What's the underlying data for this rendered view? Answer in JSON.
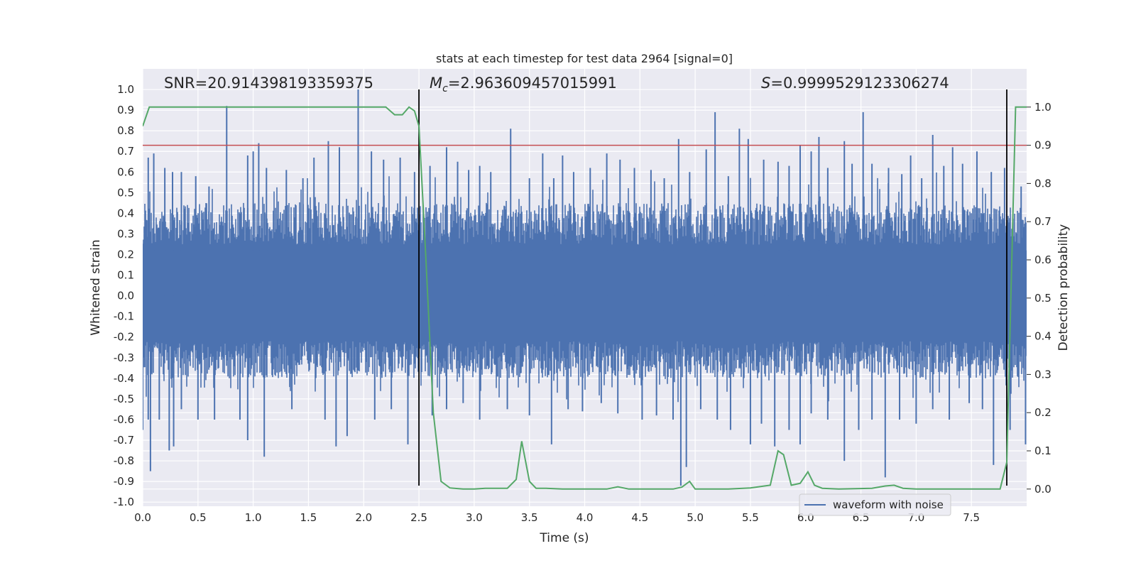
{
  "chart_data": {
    "type": "line",
    "title": "stats at each timestep for test data 2964 [signal=0]",
    "xlabel": "Time (s)",
    "ylabel": "Whitened strain",
    "y2label": "Detection probability",
    "xlim": [
      0.0,
      8.0
    ],
    "ylim": [
      -1.02,
      1.1
    ],
    "y2lim": [
      -0.045,
      1.1
    ],
    "x_ticks": [
      "0.0",
      "0.5",
      "1.0",
      "1.5",
      "2.0",
      "2.5",
      "3.0",
      "3.5",
      "4.0",
      "4.5",
      "5.0",
      "5.5",
      "6.0",
      "6.5",
      "7.0",
      "7.5"
    ],
    "y_ticks": [
      "-1.0",
      "-0.9",
      "-0.8",
      "-0.7",
      "-0.6",
      "-0.5",
      "-0.4",
      "-0.3",
      "-0.2",
      "-0.1",
      "0.0",
      "0.1",
      "0.2",
      "0.3",
      "0.4",
      "0.5",
      "0.6",
      "0.7",
      "0.8",
      "0.9",
      "1.0"
    ],
    "y2_ticks": [
      "0.0",
      "0.1",
      "0.2",
      "0.3",
      "0.4",
      "0.5",
      "0.6",
      "0.7",
      "0.8",
      "0.9",
      "1.0"
    ],
    "grid": true,
    "legend": {
      "position": "bottom-right",
      "entries": [
        "waveform with noise"
      ]
    },
    "annotations": {
      "snr": "SNR=20.914398193359375",
      "mc_symbol": "M",
      "mc_sub": "c",
      "mc_value": "=2.963609457015991",
      "s_symbol": "S",
      "s_value": "=0.9999529123306274"
    },
    "threshold_line": {
      "axis": "right",
      "value": 0.9,
      "color": "#c44e52"
    },
    "vertical_markers": [
      {
        "x": 2.5,
        "y_range": [
          -0.92,
          1.0
        ]
      },
      {
        "x": 7.82,
        "y_range": [
          -0.92,
          1.0
        ]
      }
    ],
    "waveform": {
      "name": "waveform with noise",
      "color": "#4c72b0",
      "envelope_upper": 0.45,
      "envelope_lower": -0.4,
      "peaks": [
        [
          0.05,
          0.67
        ],
        [
          0.1,
          0.69
        ],
        [
          0.2,
          0.62
        ],
        [
          0.27,
          0.6
        ],
        [
          0.35,
          0.6
        ],
        [
          0.48,
          0.58
        ],
        [
          0.6,
          0.53
        ],
        [
          0.76,
          0.92
        ],
        [
          0.95,
          0.68
        ],
        [
          1.0,
          0.7
        ],
        [
          1.05,
          0.74
        ],
        [
          1.12,
          0.62
        ],
        [
          1.3,
          0.61
        ],
        [
          1.45,
          0.57
        ],
        [
          1.55,
          0.67
        ],
        [
          1.68,
          0.75
        ],
        [
          1.78,
          0.72
        ],
        [
          1.95,
          1.0
        ],
        [
          2.07,
          0.7
        ],
        [
          2.18,
          0.66
        ],
        [
          2.33,
          0.67
        ],
        [
          2.46,
          0.6
        ],
        [
          2.6,
          0.63
        ],
        [
          2.75,
          0.72
        ],
        [
          2.85,
          0.65
        ],
        [
          2.95,
          0.61
        ],
        [
          3.05,
          0.63
        ],
        [
          3.15,
          0.6
        ],
        [
          3.33,
          0.81
        ],
        [
          3.5,
          0.57
        ],
        [
          3.62,
          0.69
        ],
        [
          3.72,
          0.57
        ],
        [
          3.8,
          0.68
        ],
        [
          3.9,
          0.6
        ],
        [
          4.05,
          0.62
        ],
        [
          4.2,
          0.69
        ],
        [
          4.32,
          0.66
        ],
        [
          4.45,
          0.62
        ],
        [
          4.6,
          0.61
        ],
        [
          4.72,
          0.57
        ],
        [
          4.85,
          0.76
        ],
        [
          4.95,
          0.6
        ],
        [
          5.1,
          0.71
        ],
        [
          5.18,
          0.89
        ],
        [
          5.3,
          0.58
        ],
        [
          5.4,
          0.81
        ],
        [
          5.48,
          0.76
        ],
        [
          5.62,
          0.66
        ],
        [
          5.75,
          0.65
        ],
        [
          5.85,
          0.63
        ],
        [
          5.95,
          0.73
        ],
        [
          6.05,
          0.7
        ],
        [
          6.12,
          0.77
        ],
        [
          6.2,
          0.62
        ],
        [
          6.35,
          0.75
        ],
        [
          6.42,
          0.64
        ],
        [
          6.52,
          0.89
        ],
        [
          6.6,
          0.64
        ],
        [
          6.75,
          0.62
        ],
        [
          6.87,
          0.59
        ],
        [
          6.95,
          0.68
        ],
        [
          7.05,
          0.57
        ],
        [
          7.15,
          0.78
        ],
        [
          7.25,
          0.63
        ],
        [
          7.33,
          0.72
        ],
        [
          7.42,
          0.64
        ],
        [
          7.55,
          0.7
        ],
        [
          7.68,
          0.6
        ],
        [
          7.8,
          0.62
        ],
        [
          7.95,
          0.53
        ]
      ],
      "troughs": [
        [
          0.0,
          -0.65
        ],
        [
          0.05,
          -0.6
        ],
        [
          0.07,
          -0.85
        ],
        [
          0.15,
          -0.6
        ],
        [
          0.24,
          -0.75
        ],
        [
          0.28,
          -0.73
        ],
        [
          0.35,
          -0.55
        ],
        [
          0.5,
          -0.6
        ],
        [
          0.65,
          -0.6
        ],
        [
          0.88,
          -0.6
        ],
        [
          0.95,
          -0.7
        ],
        [
          1.1,
          -0.78
        ],
        [
          1.35,
          -0.55
        ],
        [
          1.65,
          -0.6
        ],
        [
          1.75,
          -0.73
        ],
        [
          1.85,
          -0.68
        ],
        [
          2.1,
          -0.6
        ],
        [
          2.25,
          -0.55
        ],
        [
          2.4,
          -0.72
        ],
        [
          2.62,
          -0.58
        ],
        [
          2.75,
          -0.55
        ],
        [
          2.9,
          -0.52
        ],
        [
          3.05,
          -0.6
        ],
        [
          3.3,
          -0.55
        ],
        [
          3.5,
          -0.58
        ],
        [
          3.7,
          -0.72
        ],
        [
          3.85,
          -0.55
        ],
        [
          3.98,
          -0.56
        ],
        [
          4.15,
          -0.52
        ],
        [
          4.3,
          -0.57
        ],
        [
          4.52,
          -0.6
        ],
        [
          4.65,
          -0.58
        ],
        [
          4.8,
          -0.6
        ],
        [
          4.87,
          -0.92
        ],
        [
          4.92,
          -0.83
        ],
        [
          5.05,
          -0.55
        ],
        [
          5.2,
          -0.6
        ],
        [
          5.32,
          -0.65
        ],
        [
          5.5,
          -0.72
        ],
        [
          5.6,
          -0.62
        ],
        [
          5.72,
          -0.73
        ],
        [
          5.85,
          -0.65
        ],
        [
          5.95,
          -0.72
        ],
        [
          6.05,
          -0.57
        ],
        [
          6.2,
          -0.6
        ],
        [
          6.35,
          -0.8
        ],
        [
          6.48,
          -0.65
        ],
        [
          6.6,
          -0.6
        ],
        [
          6.72,
          -0.88
        ],
        [
          6.85,
          -0.6
        ],
        [
          7.0,
          -0.62
        ],
        [
          7.15,
          -0.55
        ],
        [
          7.3,
          -0.6
        ],
        [
          7.48,
          -0.52
        ],
        [
          7.6,
          -0.55
        ],
        [
          7.7,
          -0.82
        ],
        [
          7.85,
          -0.65
        ],
        [
          7.99,
          -0.72
        ]
      ]
    },
    "probability": {
      "name": "Detection probability",
      "color": "#55a868",
      "x": [
        0.0,
        0.06,
        0.5,
        1.0,
        1.5,
        2.0,
        2.2,
        2.28,
        2.35,
        2.41,
        2.46,
        2.5,
        2.56,
        2.63,
        2.7,
        2.78,
        2.9,
        3.0,
        3.1,
        3.3,
        3.38,
        3.43,
        3.5,
        3.56,
        3.65,
        3.8,
        4.0,
        4.2,
        4.3,
        4.4,
        4.6,
        4.8,
        4.88,
        4.95,
        5.0,
        5.1,
        5.3,
        5.5,
        5.68,
        5.75,
        5.8,
        5.87,
        5.95,
        6.02,
        6.08,
        6.15,
        6.3,
        6.6,
        6.72,
        6.8,
        6.88,
        7.0,
        7.5,
        7.76,
        7.82,
        7.9,
        7.96,
        8.0
      ],
      "values": [
        0.95,
        1.0,
        1.0,
        1.0,
        1.0,
        1.0,
        1.0,
        0.98,
        0.98,
        1.0,
        0.99,
        0.95,
        0.62,
        0.2,
        0.02,
        0.003,
        0.0,
        0.0,
        0.002,
        0.002,
        0.025,
        0.125,
        0.02,
        0.002,
        0.002,
        0.0,
        0.0,
        0.0,
        0.006,
        0.0,
        0.0,
        0.0,
        0.005,
        0.02,
        0.0,
        0.0,
        0.0,
        0.003,
        0.01,
        0.1,
        0.09,
        0.01,
        0.015,
        0.045,
        0.01,
        0.002,
        0.0,
        0.002,
        0.008,
        0.01,
        0.002,
        0.0,
        0.0,
        0.0,
        0.07,
        1.0,
        1.0,
        1.0
      ]
    }
  }
}
